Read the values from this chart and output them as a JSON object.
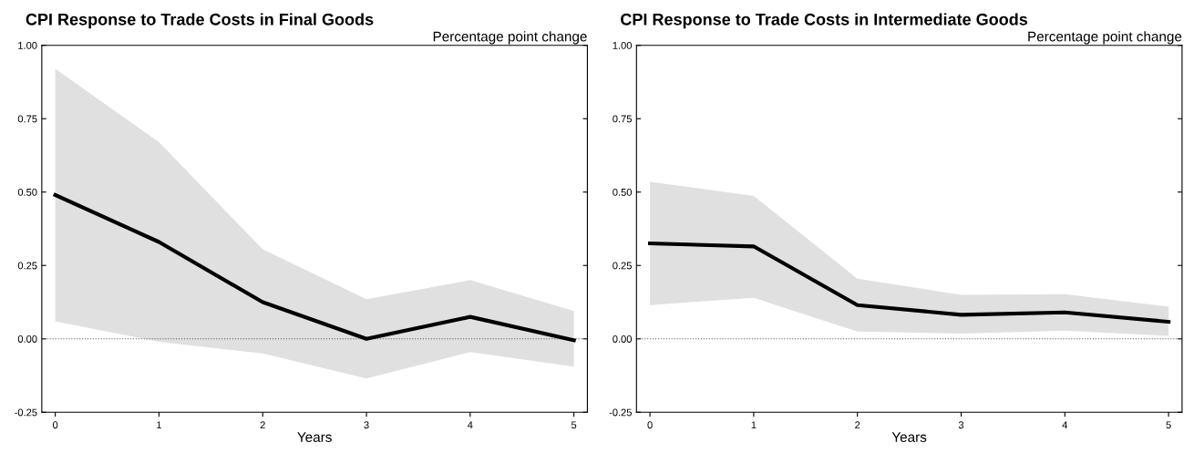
{
  "chart_data": [
    {
      "type": "line",
      "title": "CPI Response to Trade Costs in Final Goods",
      "xlabel": "Years",
      "annotations": [
        "Percentage point change"
      ],
      "x": [
        0,
        1,
        2,
        3,
        4,
        5
      ],
      "xlim": [
        -0.13,
        5.13
      ],
      "xticks": [
        0,
        1,
        2,
        3,
        4,
        5
      ],
      "ylim": [
        -0.25,
        1.0
      ],
      "yticks": [
        {
          "value": -0.25,
          "label": "-0.25"
        },
        {
          "value": 0,
          "label": "0.00"
        },
        {
          "value": 0.25,
          "label": "0.25"
        },
        {
          "value": 0.5,
          "label": "0.50"
        },
        {
          "value": 0.75,
          "label": "0.75"
        },
        {
          "value": 1.0,
          "label": "1.00"
        }
      ],
      "grid": false,
      "legend": false,
      "series": [
        {
          "color": "#000000",
          "values": [
            0.49,
            0.33,
            0.125,
            0.0,
            0.075,
            -0.005
          ],
          "lower": [
            0.06,
            -0.01,
            -0.05,
            -0.135,
            -0.045,
            -0.095
          ],
          "upper": [
            0.92,
            0.67,
            0.305,
            0.135,
            0.2,
            0.095
          ]
        }
      ],
      "ref_lines": [
        {
          "axis": "y",
          "value": 0,
          "color": "#555555",
          "line_style": "dotted"
        }
      ]
    },
    {
      "type": "line",
      "title": "CPI Response to Trade Costs in Intermediate Goods",
      "xlabel": "Years",
      "annotations": [
        "Percentage point change"
      ],
      "x": [
        0,
        1,
        2,
        3,
        4,
        5
      ],
      "xlim": [
        -0.13,
        5.13
      ],
      "xticks": [
        0,
        1,
        2,
        3,
        4,
        5
      ],
      "ylim": [
        -0.25,
        1.0
      ],
      "yticks": [
        {
          "value": -0.25,
          "label": "-0.25"
        },
        {
          "value": 0,
          "label": "0.00"
        },
        {
          "value": 0.25,
          "label": "0.25"
        },
        {
          "value": 0.5,
          "label": "0.50"
        },
        {
          "value": 0.75,
          "label": "0.75"
        },
        {
          "value": 1.0,
          "label": "1.00"
        }
      ],
      "grid": false,
      "legend": false,
      "series": [
        {
          "color": "#000000",
          "values": [
            0.325,
            0.315,
            0.115,
            0.082,
            0.09,
            0.058
          ],
          "lower": [
            0.115,
            0.14,
            0.025,
            0.018,
            0.028,
            0.01
          ],
          "upper": [
            0.535,
            0.487,
            0.205,
            0.15,
            0.152,
            0.11
          ]
        }
      ],
      "ref_lines": [
        {
          "axis": "y",
          "value": 0,
          "color": "#555555",
          "line_style": "dotted"
        }
      ]
    }
  ]
}
